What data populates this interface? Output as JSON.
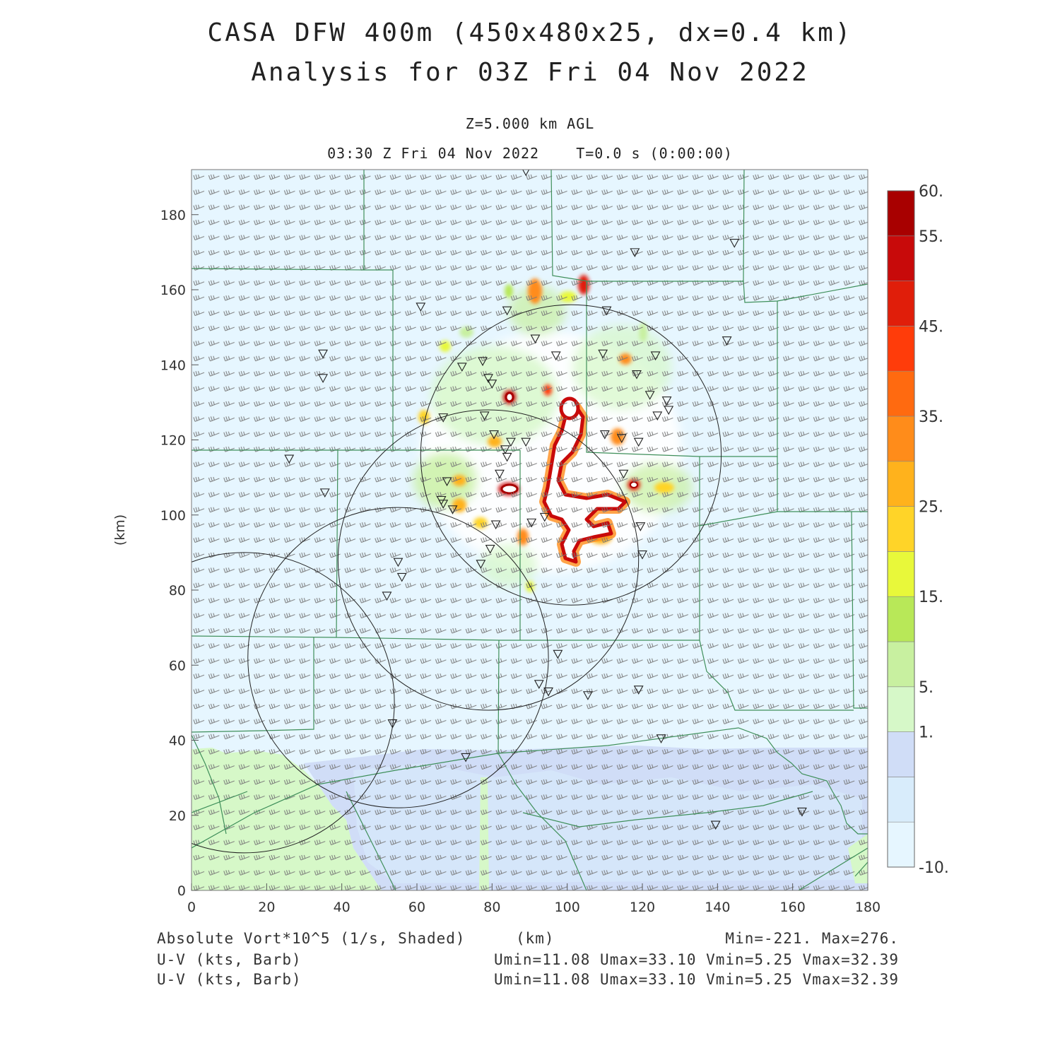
{
  "header": {
    "title_line1": "CASA DFW 400m (450x480x25, dx=0.4 km)",
    "title_line2": "Analysis for 03Z Fri 04 Nov 2022",
    "level": "Z=5.000 km AGL",
    "time_line": "03:30 Z Fri 04 Nov 2022    T=0.0 s (0:00:00)"
  },
  "footer": {
    "field_label": "Absolute Vort*10^5 (1/s, Shaded)",
    "xunit": "(km)",
    "minmax": "Min=-221. Max=276.",
    "barb_label_1": "U-V (kts, Barb)",
    "barb_stats_1": "Umin=11.08 Umax=33.10 Vmin=5.25 Vmax=32.39",
    "barb_label_2": "U-V (kts, Barb)",
    "barb_stats_2": "Umin=11.08 Umax=33.10 Vmin=5.25 Vmax=32.39"
  },
  "chart_data": {
    "type": "heatmap",
    "title": "CASA DFW 400m (450x480x25, dx=0.4 km)",
    "xlabel": "(km)",
    "ylabel": "(km)",
    "xlim": [
      0,
      180
    ],
    "ylim": [
      0,
      192
    ],
    "xticks": [
      0,
      20,
      40,
      60,
      80,
      100,
      120,
      140,
      160,
      180
    ],
    "yticks": [
      0,
      20,
      40,
      60,
      80,
      100,
      120,
      140,
      160,
      180
    ],
    "colorbar": {
      "labels": [
        "60.",
        "55.",
        "45.",
        "35.",
        "25.",
        "15.",
        "5.",
        "1.",
        "-10."
      ],
      "label_values": [
        60,
        55,
        45,
        35,
        25,
        15,
        5,
        1,
        -10
      ],
      "boundaries": [
        -10,
        -5,
        0,
        1,
        5,
        10,
        15,
        20,
        25,
        30,
        35,
        40,
        45,
        50,
        55,
        60
      ],
      "colors": [
        "#e6f6ff",
        "#d8ecfb",
        "#d0ddf7",
        "#d6f8c8",
        "#c8f0a0",
        "#b8e858",
        "#e8f83a",
        "#ffd428",
        "#ffb21c",
        "#ff8c1a",
        "#ff6a10",
        "#ff3c0a",
        "#e01e0a",
        "#c80a0a",
        "#a80000"
      ]
    },
    "radar_circles_km": [
      {
        "cx": 14,
        "cy": 50,
        "r": 40
      },
      {
        "cx": 55,
        "cy": 62,
        "r": 40
      },
      {
        "cx": 79,
        "cy": 88,
        "r": 40
      },
      {
        "cx": 101,
        "cy": 116,
        "r": 40
      }
    ],
    "station_markers_km": [
      [
        89,
        191.6
      ],
      [
        118,
        170
      ],
      [
        144.5,
        172.5
      ],
      [
        61,
        155.5
      ],
      [
        84,
        154.5
      ],
      [
        110.5,
        154.5
      ],
      [
        35,
        143
      ],
      [
        91.5,
        147
      ],
      [
        97,
        142.5
      ],
      [
        109.5,
        143
      ],
      [
        123.5,
        142.5
      ],
      [
        142.5,
        146.5
      ],
      [
        35,
        136.5
      ],
      [
        72,
        139.5
      ],
      [
        77.5,
        141
      ],
      [
        79,
        136.5
      ],
      [
        80,
        135
      ],
      [
        118.5,
        137.5
      ],
      [
        122,
        132
      ],
      [
        126.5,
        130.5
      ],
      [
        127,
        128
      ],
      [
        67,
        126
      ],
      [
        78,
        126.5
      ],
      [
        124,
        126.5
      ],
      [
        80.5,
        121.5
      ],
      [
        83.5,
        117.5
      ],
      [
        85,
        119.5
      ],
      [
        89,
        119.5
      ],
      [
        110,
        121.5
      ],
      [
        114.5,
        120.5
      ],
      [
        119,
        119.5
      ],
      [
        84,
        115.5
      ],
      [
        26,
        115
      ],
      [
        82,
        111
      ],
      [
        115,
        111
      ],
      [
        35.5,
        106
      ],
      [
        68,
        109
      ],
      [
        66.5,
        104
      ],
      [
        67,
        103
      ],
      [
        69.5,
        101.5
      ],
      [
        94,
        99.5
      ],
      [
        90.5,
        98
      ],
      [
        81,
        97.5
      ],
      [
        119.5,
        97
      ],
      [
        79.5,
        91
      ],
      [
        120,
        89.5
      ],
      [
        77,
        87
      ],
      [
        55,
        87.5
      ],
      [
        56,
        83.5
      ],
      [
        52,
        78.5
      ],
      [
        97.5,
        63
      ],
      [
        92.5,
        55
      ],
      [
        95,
        53
      ],
      [
        105.5,
        52
      ],
      [
        119,
        53.5
      ],
      [
        125,
        40.5
      ],
      [
        53.5,
        44.5
      ],
      [
        73,
        35.5
      ],
      [
        139.5,
        17.5
      ],
      [
        162.5,
        21
      ]
    ],
    "vorticity_summary": {
      "min": -221,
      "max": 276
    },
    "wind_stats_kts": {
      "Umin": 11.08,
      "Umax": 33.1,
      "Vmin": 5.25,
      "Vmax": 32.39
    }
  }
}
